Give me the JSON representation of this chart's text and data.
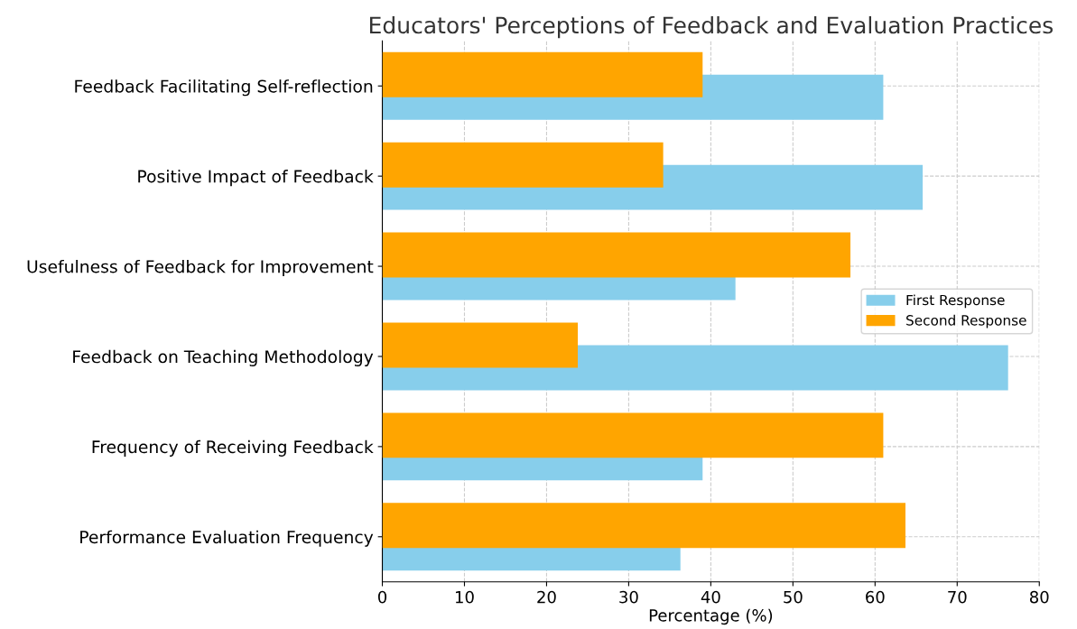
{
  "chart_data": {
    "type": "bar",
    "orientation": "horizontal",
    "title": "Educators' Perceptions of Feedback and Evaluation Practices",
    "xlabel": "Percentage (%)",
    "categories": [
      "Feedback Facilitating Self-reflection",
      "Positive Impact of Feedback",
      "Usefulness of Feedback for Improvement",
      "Feedback on Teaching Methodology",
      "Frequency of Receiving Feedback",
      "Performance Evaluation Frequency"
    ],
    "series": [
      {
        "name": "First Response",
        "color": "#87ceeb",
        "values": [
          61,
          65.8,
          43,
          76.2,
          39,
          36.3
        ]
      },
      {
        "name": "Second Response",
        "color": "#ffa500",
        "values": [
          39,
          34.2,
          57,
          23.8,
          61,
          63.7
        ]
      }
    ],
    "xlim": [
      0,
      80
    ],
    "xticks": [
      0,
      10,
      20,
      30,
      40,
      50,
      60,
      70,
      80
    ],
    "grid": true,
    "legend": "center right"
  }
}
